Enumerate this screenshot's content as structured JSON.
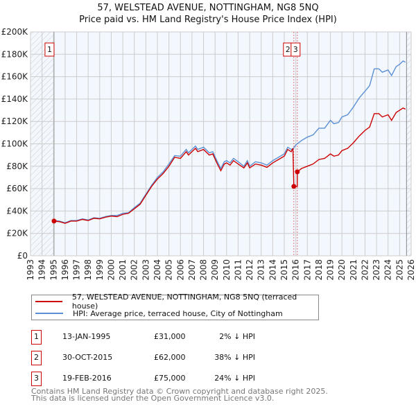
{
  "chart_data": {
    "type": "line",
    "title": "57, WELSTEAD AVENUE, NOTTINGHAM, NG8 5NQ",
    "subtitle": "Price paid vs. HM Land Registry's House Price Index (HPI)",
    "xlim": [
      1993,
      2026
    ],
    "ylim": [
      0,
      200000
    ],
    "x_ticks": [
      "1993",
      "1994",
      "1995",
      "1996",
      "1997",
      "1998",
      "1999",
      "2000",
      "2001",
      "2002",
      "2003",
      "2004",
      "2005",
      "2006",
      "2007",
      "2008",
      "2009",
      "2010",
      "2011",
      "2012",
      "2013",
      "2014",
      "2015",
      "2016",
      "2017",
      "2018",
      "2019",
      "2020",
      "2021",
      "2022",
      "2023",
      "2024",
      "2025",
      "2026"
    ],
    "y_ticks": [
      "£0",
      "£20K",
      "£40K",
      "£60K",
      "£80K",
      "£100K",
      "£120K",
      "£140K",
      "£160K",
      "£180K",
      "£200K"
    ],
    "grid": true,
    "series": [
      {
        "name": "57, WELSTEAD AVENUE, NOTTINGHAM, NG8 5NQ (terraced house)",
        "color": "#cc0000",
        "x": [
          1995.04,
          1995.5,
          1996,
          1996.5,
          1997,
          1997.5,
          1998,
          1998.5,
          1999,
          1999.5,
          2000,
          2000.5,
          2001,
          2001.5,
          2002,
          2002.5,
          2003,
          2003.5,
          2004,
          2004.5,
          2005,
          2005.5,
          2006,
          2006.5,
          2006.7,
          2007,
          2007.3,
          2007.5,
          2008,
          2008.5,
          2008.8,
          2009.2,
          2009.5,
          2009.8,
          2010,
          2010.3,
          2010.6,
          2011,
          2011.5,
          2011.8,
          2012,
          2012.5,
          2013,
          2013.5,
          2014,
          2014.5,
          2015,
          2015.3,
          2015.6,
          2015.75,
          2015.83,
          2016.13,
          2016.13,
          2016.5,
          2017,
          2017.5,
          2018,
          2018.5,
          2019,
          2019.3,
          2019.7,
          2020,
          2020.5,
          2021,
          2021.5,
          2022,
          2022.4,
          2022.8,
          2023.2,
          2023.5,
          2024,
          2024.3,
          2024.7,
          2025,
          2025.3,
          2025.5
        ],
        "y": [
          31000,
          30500,
          29000,
          31000,
          31000,
          32500,
          31500,
          33500,
          33000,
          34500,
          35500,
          35000,
          37000,
          38000,
          42000,
          46000,
          54000,
          62000,
          68500,
          73500,
          80000,
          88000,
          87000,
          93000,
          90000,
          93000,
          96000,
          93000,
          95000,
          90000,
          91000,
          82000,
          76000,
          82000,
          83000,
          81000,
          85000,
          82000,
          78500,
          83000,
          78500,
          82000,
          81000,
          79000,
          83000,
          86000,
          89000,
          95000,
          93000,
          96000,
          62000,
          62000,
          75000,
          78000,
          80000,
          82000,
          86000,
          87000,
          91000,
          89000,
          90000,
          94000,
          96000,
          101000,
          107000,
          112000,
          115000,
          127000,
          127000,
          124000,
          126000,
          121000,
          128000,
          130000,
          132000,
          131000
        ]
      },
      {
        "name": "HPI: Average price, terraced house, City of Nottingham",
        "color": "#5b8fd4",
        "x": [
          1995.04,
          1995.5,
          1996,
          1996.5,
          1997,
          1997.5,
          1998,
          1998.5,
          1999,
          1999.5,
          2000,
          2000.5,
          2001,
          2001.5,
          2002,
          2002.5,
          2003,
          2003.5,
          2004,
          2004.5,
          2005,
          2005.5,
          2006,
          2006.5,
          2006.7,
          2007,
          2007.3,
          2007.5,
          2008,
          2008.5,
          2008.8,
          2009.2,
          2009.5,
          2009.8,
          2010,
          2010.3,
          2010.6,
          2011,
          2011.5,
          2011.8,
          2012,
          2012.5,
          2013,
          2013.5,
          2014,
          2014.5,
          2015,
          2015.3,
          2015.6,
          2015.8,
          2016,
          2016.5,
          2017,
          2017.5,
          2018,
          2018.5,
          2019,
          2019.3,
          2019.7,
          2020,
          2020.5,
          2021,
          2021.5,
          2022,
          2022.4,
          2022.8,
          2023.2,
          2023.5,
          2024,
          2024.3,
          2024.7,
          2025,
          2025.3,
          2025.5
        ],
        "y": [
          31500,
          31000,
          29500,
          31500,
          31500,
          33000,
          32000,
          34000,
          33500,
          35000,
          36000,
          36000,
          38000,
          38500,
          43000,
          47000,
          55000,
          63000,
          70000,
          75000,
          82000,
          89500,
          89000,
          95000,
          92000,
          95000,
          98000,
          95000,
          97000,
          92000,
          93000,
          84000,
          78000,
          84000,
          85000,
          83000,
          87000,
          84000,
          80000,
          85000,
          80000,
          84000,
          83000,
          81000,
          85000,
          88000,
          91000,
          97000,
          95000,
          96000,
          99000,
          103000,
          106000,
          108000,
          114000,
          114000,
          121000,
          118000,
          119000,
          124000,
          126000,
          133000,
          141000,
          147000,
          152000,
          167000,
          167000,
          164000,
          166000,
          161000,
          169000,
          171000,
          174000,
          173000
        ]
      }
    ],
    "transactions": [
      {
        "id": "1",
        "x": 1995.04,
        "date": "13-JAN-1995",
        "price": 31000,
        "price_label": "£31,000",
        "hpi_diff": "2% ↓ HPI"
      },
      {
        "id": "2",
        "x": 2015.83,
        "date": "30-OCT-2015",
        "price": 62000,
        "price_label": "£62,000",
        "hpi_diff": "38% ↓ HPI"
      },
      {
        "id": "3",
        "x": 2016.13,
        "date": "19-FEB-2016",
        "price": 75000,
        "price_label": "£75,000",
        "hpi_diff": "24% ↓ HPI"
      }
    ],
    "hatch_before": 1995.04,
    "hatch_after": 2025.6
  },
  "footer": [
    "Contains HM Land Registry data © Crown copyright and database right 2025.",
    "This data is licensed under the Open Government Licence v3.0."
  ]
}
